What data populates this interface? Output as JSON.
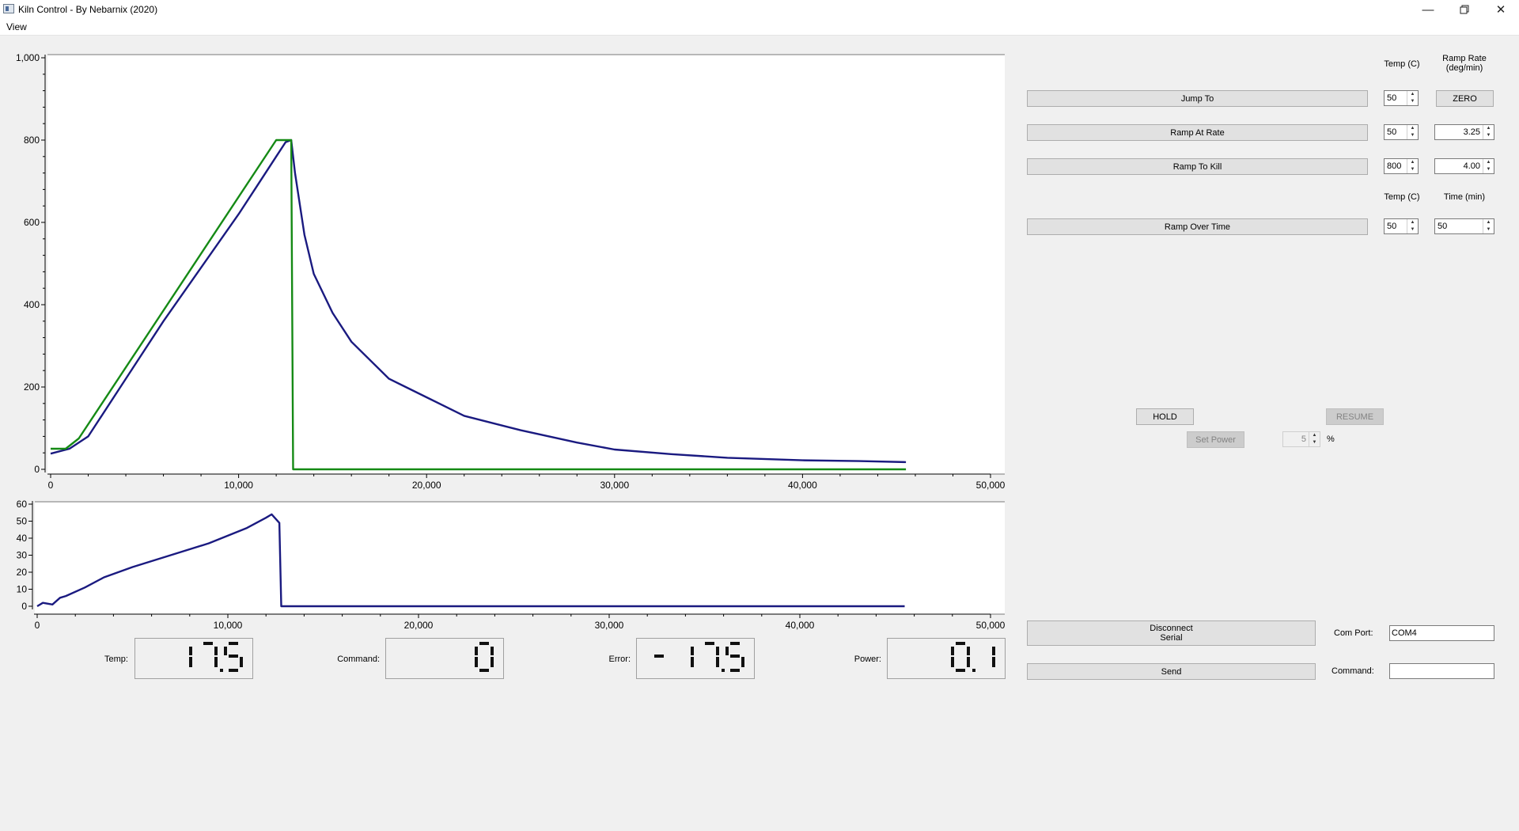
{
  "window": {
    "title": "Kiln Control - By Nebarnix (2020)",
    "menu": [
      "View"
    ],
    "controls": [
      "minimize-icon",
      "restore-icon",
      "close-icon"
    ]
  },
  "colors": {
    "measured_temp": "#1a1a80",
    "setpoint": "#158a15",
    "duty": "#1a1a80"
  },
  "chart_data": [
    {
      "type": "line",
      "title": "",
      "xlabel": "",
      "ylabel": "",
      "xlim": [
        0,
        50000
      ],
      "ylim": [
        0,
        1000
      ],
      "xticks": [
        "0",
        "10,000",
        "20,000",
        "30,000",
        "40,000",
        "50,000"
      ],
      "yticks": [
        "0",
        "200",
        "400",
        "600",
        "800",
        "1,000"
      ],
      "grid": false,
      "series": [
        {
          "color": "#1a1a80",
          "x": [
            0,
            1000,
            2000,
            4000,
            6000,
            8000,
            10000,
            11000,
            12000,
            12500,
            12800,
            13000,
            13500,
            14000,
            15000,
            16000,
            18000,
            20000,
            22000,
            25000,
            28000,
            30000,
            33000,
            36000,
            40000,
            43000,
            45500
          ],
          "y": [
            38,
            50,
            80,
            220,
            360,
            490,
            620,
            690,
            760,
            795,
            800,
            720,
            570,
            475,
            380,
            310,
            220,
            175,
            130,
            95,
            65,
            48,
            37,
            28,
            22,
            20,
            17.5
          ]
        },
        {
          "color": "#158a15",
          "x": [
            0,
            800,
            1500,
            12000,
            12400,
            12800,
            12900,
            45500
          ],
          "y": [
            50,
            50,
            75,
            800,
            800,
            800,
            0,
            0
          ]
        }
      ]
    },
    {
      "type": "line",
      "title": "",
      "xlabel": "",
      "ylabel": "",
      "xlim": [
        0,
        50000
      ],
      "ylim": [
        0,
        60
      ],
      "xticks": [
        "0",
        "10,000",
        "20,000",
        "30,000",
        "40,000",
        "50,000"
      ],
      "yticks": [
        "0",
        "10",
        "20",
        "30",
        "40",
        "50",
        "60"
      ],
      "grid": false,
      "series": [
        {
          "color": "#1a1a80",
          "x": [
            0,
            300,
            800,
            1200,
            1500,
            2500,
            3500,
            5000,
            7000,
            9000,
            11000,
            12000,
            12300,
            12700,
            12800,
            13000,
            45500
          ],
          "y": [
            0,
            2,
            1,
            5,
            6,
            11,
            17,
            23,
            30,
            37,
            46,
            52,
            54,
            49,
            0,
            0,
            0
          ]
        }
      ]
    }
  ],
  "readouts": {
    "temp": {
      "label": "Temp:",
      "value": "17.5"
    },
    "command": {
      "label": "Command:",
      "value": "0"
    },
    "error": {
      "label": "Error:",
      "value": "-17.5"
    },
    "power": {
      "label": "Power:",
      "value": "0.1"
    }
  },
  "controls": {
    "headers": {
      "temp_c": "Temp (C)",
      "ramp_rate_line1": "Ramp Rate",
      "ramp_rate_line2": "(deg/min)",
      "temp_c_2": "Temp (C)",
      "time_min": "Time (min)"
    },
    "jump_to": {
      "label": "Jump To",
      "temp": "50",
      "zero_label": "ZERO"
    },
    "ramp_at_rate": {
      "label": "Ramp At Rate",
      "temp": "50",
      "rate": "3.25"
    },
    "ramp_to_kill": {
      "label": "Ramp To Kill",
      "temp": "800",
      "rate": "4.00"
    },
    "ramp_over_time": {
      "label": "Ramp Over Time",
      "temp": "50",
      "time": "50"
    },
    "hold_label": "HOLD",
    "resume_label": "RESUME",
    "set_power_label": "Set Power",
    "power_value": "5",
    "power_unit": "%"
  },
  "serial": {
    "disconnect_line1": "Disconnect",
    "disconnect_line2": "Serial",
    "send_label": "Send",
    "com_port_label": "Com Port:",
    "com_port_value": "COM4",
    "command_label": "Command:",
    "command_value": ""
  }
}
